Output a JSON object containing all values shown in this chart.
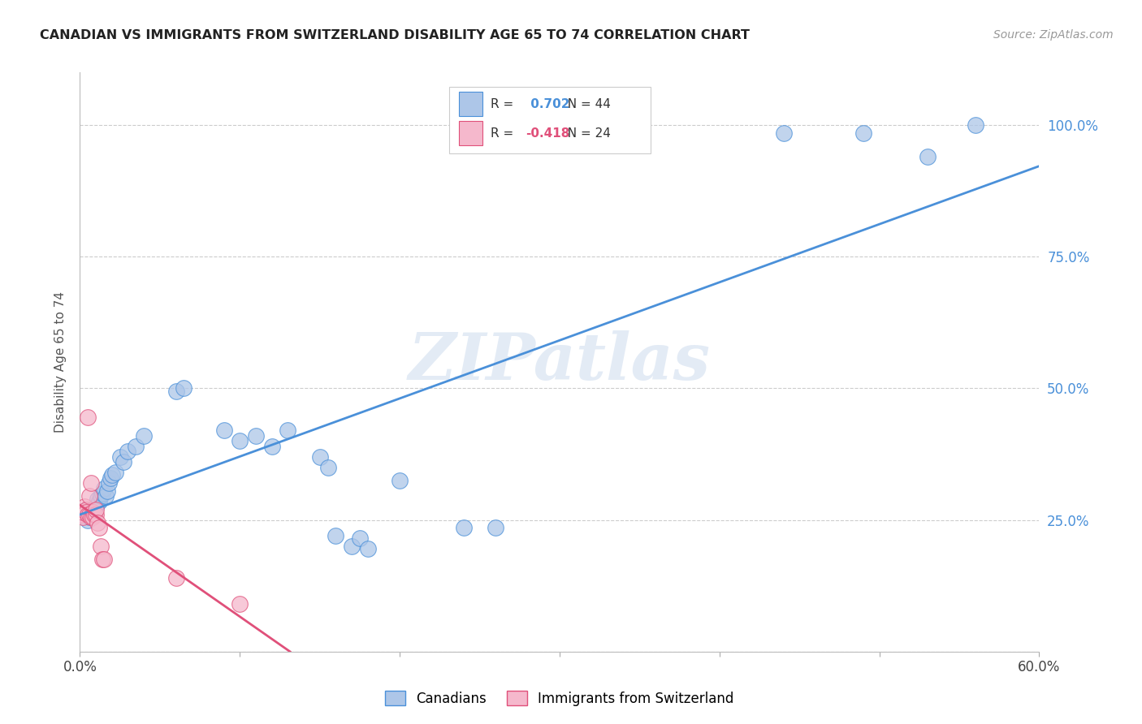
{
  "title": "CANADIAN VS IMMIGRANTS FROM SWITZERLAND DISABILITY AGE 65 TO 74 CORRELATION CHART",
  "source": "Source: ZipAtlas.com",
  "ylabel": "Disability Age 65 to 74",
  "legend_label_blue": "Canadians",
  "legend_label_pink": "Immigrants from Switzerland",
  "r_blue": 0.702,
  "n_blue": 44,
  "r_pink": -0.418,
  "n_pink": 24,
  "blue_color": "#adc6e8",
  "pink_color": "#f5b8cc",
  "blue_line_color": "#4a90d9",
  "pink_line_color": "#e0507a",
  "watermark": "ZIPatlas",
  "canadians_x": [
    0.003,
    0.004,
    0.005,
    0.006,
    0.007,
    0.008,
    0.009,
    0.01,
    0.011,
    0.012,
    0.013,
    0.014,
    0.015,
    0.016,
    0.017,
    0.018,
    0.019,
    0.02,
    0.022,
    0.025,
    0.027,
    0.03,
    0.035,
    0.04,
    0.06,
    0.065,
    0.09,
    0.1,
    0.11,
    0.12,
    0.13,
    0.15,
    0.155,
    0.16,
    0.17,
    0.175,
    0.18,
    0.2,
    0.24,
    0.26,
    0.44,
    0.49,
    0.53,
    0.56
  ],
  "canadians_y": [
    0.265,
    0.27,
    0.25,
    0.255,
    0.26,
    0.27,
    0.26,
    0.275,
    0.29,
    0.285,
    0.295,
    0.3,
    0.31,
    0.295,
    0.305,
    0.32,
    0.33,
    0.335,
    0.34,
    0.37,
    0.36,
    0.38,
    0.39,
    0.41,
    0.495,
    0.5,
    0.42,
    0.4,
    0.41,
    0.39,
    0.42,
    0.37,
    0.35,
    0.22,
    0.2,
    0.215,
    0.195,
    0.325,
    0.235,
    0.235,
    0.985,
    0.985,
    0.94,
    1.0
  ],
  "swiss_x": [
    0.001,
    0.002,
    0.002,
    0.003,
    0.004,
    0.004,
    0.005,
    0.005,
    0.006,
    0.006,
    0.007,
    0.007,
    0.008,
    0.008,
    0.009,
    0.01,
    0.01,
    0.011,
    0.012,
    0.013,
    0.014,
    0.015,
    0.06,
    0.1
  ],
  "swiss_y": [
    0.26,
    0.255,
    0.265,
    0.275,
    0.27,
    0.265,
    0.445,
    0.26,
    0.295,
    0.26,
    0.32,
    0.255,
    0.265,
    0.255,
    0.26,
    0.26,
    0.27,
    0.245,
    0.235,
    0.2,
    0.175,
    0.175,
    0.14,
    0.09
  ],
  "xlim": [
    0.0,
    0.6
  ],
  "ylim": [
    0.0,
    1.1
  ],
  "yticks": [
    0.0,
    0.25,
    0.5,
    0.75,
    1.0
  ],
  "ytick_labels": [
    "",
    "25.0%",
    "50.0%",
    "75.0%",
    "100.0%"
  ],
  "xtick_positions": [
    0.0,
    0.1,
    0.2,
    0.3,
    0.4,
    0.5,
    0.6
  ],
  "xtick_labels": [
    "0.0%",
    "",
    "",
    "",
    "",
    "",
    "60.0%"
  ]
}
